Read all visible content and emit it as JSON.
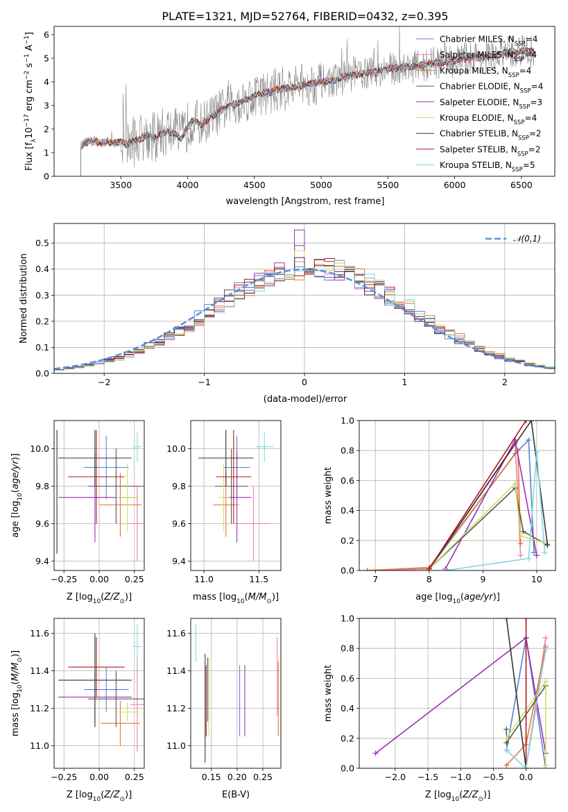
{
  "figure_title": "PLATE=1321, MJD=52764, FIBERID=0432, z=0.395",
  "colors": {
    "Chabrier MILES": "#5b7fd6",
    "Salpeter MILES": "#f080a8",
    "Kroupa MILES": "#e07830",
    "Chabrier ELODIE": "#555555",
    "Salpeter ELODIE": "#9b30b0",
    "Kroupa ELODIE": "#cfe060",
    "Chabrier STELIB": "#333333",
    "Salpeter STELIB": "#b01818",
    "Kroupa STELIB": "#80d8e0",
    "data": "#808080",
    "gauss": "#5b8fd9",
    "grid": "#b0b0b0"
  },
  "chart_data": [
    {
      "id": "spectrum",
      "type": "line",
      "title": "PLATE=1321, MJD=52764, FIBERID=0432, z=0.395",
      "xlabel": "wavelength [Angstrom, rest frame]",
      "ylabel": "Flux [f_λ 10^-17 erg cm^-2 s^-1 A^-1]",
      "xlim": [
        3000,
        6750
      ],
      "ylim": [
        0,
        6.35
      ],
      "xticks": [
        3500,
        4000,
        4500,
        5000,
        5500,
        6000,
        6500
      ],
      "yticks": [
        0,
        1,
        2,
        3,
        4,
        5,
        6
      ],
      "grid": false,
      "legend": "upper right",
      "legend_entries": [
        {
          "label": "Chabrier MILES, N_SSP=4",
          "main": "Chabrier MILES, N",
          "sub": "SSP",
          "tail": "=4"
        },
        {
          "label": "Salpeter MILES, N_SSP=4",
          "main": "Salpeter MILES, N",
          "sub": "SSP",
          "tail": "=4"
        },
        {
          "label": "Kroupa MILES, N_SSP=4",
          "main": "Kroupa MILES, N",
          "sub": "SSP",
          "tail": "=4"
        },
        {
          "label": "Chabrier ELODIE, N_SSP=4",
          "main": "Chabrier ELODIE, N",
          "sub": "SSP",
          "tail": "=4"
        },
        {
          "label": "Salpeter ELODIE, N_SSP=3",
          "main": "Salpeter ELODIE, N",
          "sub": "SSP",
          "tail": "=3"
        },
        {
          "label": "Kroupa ELODIE, N_SSP=4",
          "main": "Kroupa ELODIE, N",
          "sub": "SSP",
          "tail": "=4"
        },
        {
          "label": "Chabrier STELIB, N_SSP=2",
          "main": "Chabrier STELIB, N",
          "sub": "SSP",
          "tail": "=2"
        },
        {
          "label": "Salpeter STELIB, N_SSP=2",
          "main": "Salpeter STELIB, N",
          "sub": "SSP",
          "tail": "=2"
        },
        {
          "label": "Kroupa STELIB, N_SSP=5",
          "main": "Kroupa STELIB, N",
          "sub": "SSP",
          "tail": "=5"
        }
      ],
      "model_continuum": {
        "x": [
          3200,
          3210,
          3250,
          3300,
          3350,
          3400,
          3450,
          3500,
          3550,
          3600,
          3650,
          3700,
          3750,
          3800,
          3850,
          3900,
          3950,
          4000,
          4050,
          4100,
          4200,
          4300,
          4400,
          4500,
          4600,
          4700,
          4800,
          4900,
          5000,
          5100,
          5200,
          5300,
          5400,
          5500,
          5600,
          5700,
          5800,
          5900,
          6000,
          6100,
          6200,
          6300,
          6400,
          6500,
          6600
        ],
        "y": [
          1.3,
          1.35,
          1.45,
          1.5,
          1.4,
          1.5,
          1.4,
          1.45,
          1.35,
          1.5,
          1.6,
          1.75,
          1.6,
          1.8,
          1.9,
          1.85,
          1.55,
          2.1,
          2.4,
          2.2,
          2.6,
          2.95,
          3.15,
          3.4,
          3.55,
          3.7,
          3.8,
          3.9,
          4.0,
          4.05,
          4.25,
          4.35,
          4.4,
          4.55,
          4.6,
          4.65,
          4.75,
          4.8,
          4.9,
          5.0,
          5.05,
          5.1,
          5.25,
          5.3,
          5.25
        ]
      },
      "observed_data_range": [
        3200,
        6600
      ]
    },
    {
      "id": "residuals",
      "type": "histogram",
      "xlabel": "(data-model)/error",
      "ylabel": "Normed distribution",
      "xlim": [
        -2.5,
        2.5
      ],
      "ylim": [
        0,
        0.575
      ],
      "xticks": [
        -2,
        -1,
        0,
        1,
        2
      ],
      "yticks": [
        0.0,
        0.1,
        0.2,
        0.3,
        0.4,
        0.5
      ],
      "grid": true,
      "legend": "upper right",
      "legend_entries": [
        "𝒩(0,1)"
      ],
      "gaussian": {
        "mean": 0,
        "sigma": 1
      },
      "bin_width": 0.1,
      "base_mean": 0.08,
      "base_sigma": 0.98,
      "peak_values": {
        "Salpeter ELODIE": 0.55,
        "Chabrier ELODIE": 0.49,
        "Kroupa ELODIE": 0.47
      }
    },
    {
      "id": "age_vs_Z",
      "type": "errorbar",
      "xlabel": "Z [log10(Z/Z⊙)]",
      "ylabel": "age [log10(age/yr)]",
      "xlim": [
        -0.32,
        0.32
      ],
      "ylim": [
        9.35,
        10.15
      ],
      "xticks": [
        -0.25,
        0.0,
        0.25
      ],
      "yticks": [
        9.4,
        9.6,
        9.8,
        10.0
      ],
      "grid": true,
      "points": [
        {
          "model": "Chabrier MILES",
          "x": 0.05,
          "xerr": 0.16,
          "y": 9.9,
          "yerr": 0.17
        },
        {
          "model": "Salpeter MILES",
          "x": 0.27,
          "xerr": 0.06,
          "y": 9.6,
          "yerr": 0.2
        },
        {
          "model": "Kroupa MILES",
          "x": 0.15,
          "xerr": 0.15,
          "y": 9.7,
          "yerr": 0.17
        },
        {
          "model": "Chabrier ELODIE",
          "x": 0.12,
          "xerr": 0.2,
          "y": 9.8,
          "yerr": 0.2
        },
        {
          "model": "Salpeter ELODIE",
          "x": -0.03,
          "xerr": 0.26,
          "y": 9.74,
          "yerr": 0.24
        },
        {
          "model": "Kroupa ELODIE",
          "x": 0.2,
          "xerr": 0.08,
          "y": 9.74,
          "yerr": 0.18
        },
        {
          "model": "Chabrier STELIB",
          "x": -0.03,
          "xerr": 0.26,
          "y": 9.95,
          "yerr": 0.15
        },
        {
          "model": "Salpeter STELIB",
          "x": -0.02,
          "xerr": 0.2,
          "y": 9.85,
          "yerr": 0.25
        },
        {
          "model": "Kroupa STELIB",
          "x": 0.27,
          "xerr": 0.03,
          "y": 10.01,
          "yerr": 0.08
        }
      ],
      "extra_points": [
        {
          "model": "Chabrier STELIB",
          "x": -0.3,
          "xerr": 0.0,
          "y": 9.77,
          "yerr": 0.33
        }
      ]
    },
    {
      "id": "age_vs_mass",
      "type": "errorbar",
      "xlabel": "mass [log10(M/M⊙)]",
      "ylabel": "",
      "xlim": [
        10.88,
        11.7
      ],
      "ylim": [
        9.35,
        10.15
      ],
      "xticks": [
        11.0,
        11.5
      ],
      "yticks": [
        9.4,
        9.6,
        9.8,
        10.0
      ],
      "grid": true,
      "points": [
        {
          "model": "Chabrier MILES",
          "x": 11.3,
          "xerr": 0.12,
          "y": 9.9,
          "yerr": 0.17
        },
        {
          "model": "Salpeter MILES",
          "x": 11.45,
          "xerr": 0.15,
          "y": 9.6,
          "yerr": 0.2
        },
        {
          "model": "Kroupa MILES",
          "x": 11.2,
          "xerr": 0.12,
          "y": 9.7,
          "yerr": 0.17
        },
        {
          "model": "Chabrier ELODIE",
          "x": 11.25,
          "xerr": 0.15,
          "y": 9.8,
          "yerr": 0.2
        },
        {
          "model": "Salpeter ELODIE",
          "x": 11.3,
          "xerr": 0.13,
          "y": 9.74,
          "yerr": 0.24
        },
        {
          "model": "Kroupa ELODIE",
          "x": 11.18,
          "xerr": 0.05,
          "y": 9.74,
          "yerr": 0.18
        },
        {
          "model": "Chabrier STELIB",
          "x": 11.2,
          "xerr": 0.25,
          "y": 9.95,
          "yerr": 0.15
        },
        {
          "model": "Salpeter STELIB",
          "x": 11.27,
          "xerr": 0.16,
          "y": 9.85,
          "yerr": 0.25
        },
        {
          "model": "Kroupa STELIB",
          "x": 11.55,
          "xerr": 0.08,
          "y": 10.01,
          "yerr": 0.08
        }
      ]
    },
    {
      "id": "mass_weight_vs_age",
      "type": "line",
      "xlabel": "age [log10(age/yr)]",
      "ylabel": "mass weight",
      "xlim": [
        6.7,
        10.35
      ],
      "ylim": [
        0,
        1.0
      ],
      "xticks": [
        7,
        8,
        9,
        10
      ],
      "yticks": [
        0.0,
        0.2,
        0.4,
        0.6,
        0.8,
        1.0
      ],
      "grid": true,
      "series": [
        {
          "model": "Chabrier MILES",
          "x": [
            6.85,
            8.0,
            9.6,
            9.85,
            9.95
          ],
          "y": [
            0.0,
            0.01,
            0.78,
            0.87,
            0.12
          ]
        },
        {
          "model": "Salpeter MILES",
          "x": [
            6.85,
            8.0,
            9.6,
            9.7
          ],
          "y": [
            0.0,
            0.01,
            0.85,
            0.1
          ]
        },
        {
          "model": "Kroupa MILES",
          "x": [
            6.85,
            8.0,
            9.65,
            9.7
          ],
          "y": [
            0.0,
            0.02,
            0.8,
            0.18
          ]
        },
        {
          "model": "Chabrier ELODIE",
          "x": [
            8.0,
            9.6,
            9.75,
            10.2
          ],
          "y": [
            0.01,
            0.55,
            0.26,
            0.17
          ]
        },
        {
          "model": "Salpeter ELODIE",
          "x": [
            8.3,
            9.6,
            10.0
          ],
          "y": [
            0.01,
            0.87,
            0.1
          ]
        },
        {
          "model": "Kroupa ELODIE",
          "x": [
            8.0,
            9.6,
            9.7,
            10.2
          ],
          "y": [
            0.01,
            0.58,
            0.23,
            0.18
          ]
        },
        {
          "model": "Chabrier STELIB",
          "x": [
            8.0,
            9.9,
            10.2
          ],
          "y": [
            0.01,
            1.0,
            0.17
          ]
        },
        {
          "model": "Salpeter STELIB",
          "x": [
            8.0,
            9.8
          ],
          "y": [
            0.01,
            1.0
          ]
        },
        {
          "model": "Kroupa STELIB",
          "x": [
            8.3,
            9.85,
            10.0,
            10.15
          ],
          "y": [
            0.0,
            0.08,
            0.79,
            0.12
          ]
        }
      ]
    },
    {
      "id": "mass_vs_Z",
      "type": "errorbar",
      "xlabel": "Z [log10(Z/Z⊙)]",
      "ylabel": "mass [log10(M/M⊙)]",
      "xlim": [
        -0.32,
        0.32
      ],
      "ylim": [
        10.88,
        11.68
      ],
      "xticks": [
        -0.25,
        0.0,
        0.25
      ],
      "yticks": [
        11.0,
        11.2,
        11.4,
        11.6
      ],
      "grid": true,
      "points": [
        {
          "model": "Chabrier MILES",
          "x": 0.05,
          "xerr": 0.16,
          "y": 11.3,
          "yerr": 0.12
        },
        {
          "model": "Salpeter MILES",
          "x": 0.27,
          "xerr": 0.05,
          "y": 11.22,
          "yerr": 0.25
        },
        {
          "model": "Kroupa MILES",
          "x": 0.15,
          "xerr": 0.14,
          "y": 11.12,
          "yerr": 0.12
        },
        {
          "model": "Chabrier ELODIE",
          "x": 0.12,
          "xerr": 0.2,
          "y": 11.25,
          "yerr": 0.15
        },
        {
          "model": "Salpeter ELODIE",
          "x": -0.03,
          "xerr": 0.26,
          "y": 11.26,
          "yerr": 0.13
        },
        {
          "model": "Kroupa ELODIE",
          "x": 0.2,
          "xerr": 0.09,
          "y": 11.18,
          "yerr": 0.05
        },
        {
          "model": "Chabrier STELIB",
          "x": -0.03,
          "xerr": 0.26,
          "y": 11.35,
          "yerr": 0.25
        },
        {
          "model": "Salpeter STELIB",
          "x": -0.02,
          "xerr": 0.2,
          "y": 11.42,
          "yerr": 0.16
        },
        {
          "model": "Kroupa STELIB",
          "x": 0.27,
          "xerr": 0.03,
          "y": 11.53,
          "yerr": 0.12
        }
      ]
    },
    {
      "id": "mass_vs_EBV",
      "type": "errorbar",
      "xlabel": "E(B-V)",
      "ylabel": "",
      "xlim": [
        0.11,
        0.285
      ],
      "ylim": [
        10.88,
        11.68
      ],
      "xticks": [
        0.15,
        0.2,
        0.25
      ],
      "yticks": [
        11.0,
        11.2,
        11.4,
        11.6
      ],
      "grid": true,
      "points": [
        {
          "model": "Chabrier MILES",
          "x": 0.205,
          "xerr": 0,
          "y": 11.24,
          "yerr": 0.19
        },
        {
          "model": "Salpeter MILES",
          "x": 0.278,
          "xerr": 0,
          "y": 11.37,
          "yerr": 0.21
        },
        {
          "model": "Kroupa MILES",
          "x": 0.28,
          "xerr": 0,
          "y": 11.25,
          "yerr": 0.2
        },
        {
          "model": "Chabrier ELODIE",
          "x": 0.143,
          "xerr": 0,
          "y": 11.3,
          "yerr": 0.17
        },
        {
          "model": "Salpeter ELODIE",
          "x": 0.215,
          "xerr": 0,
          "y": 11.24,
          "yerr": 0.19
        },
        {
          "model": "Kroupa ELODIE",
          "x": 0.145,
          "xerr": 0,
          "y": 11.26,
          "yerr": 0.21
        },
        {
          "model": "Chabrier STELIB",
          "x": 0.138,
          "xerr": 0,
          "y": 11.2,
          "yerr": 0.29
        },
        {
          "model": "Salpeter STELIB",
          "x": 0.14,
          "xerr": 0,
          "y": 11.24,
          "yerr": 0.19
        },
        {
          "model": "Kroupa STELIB",
          "x": 0.12,
          "xerr": 0,
          "y": 11.55,
          "yerr": 0.1
        }
      ]
    },
    {
      "id": "mass_weight_vs_Z",
      "type": "line",
      "xlabel": "Z [log10(Z/Z⊙)]",
      "ylabel": "mass weight",
      "xlim": [
        -2.55,
        0.45
      ],
      "ylim": [
        0,
        1.0
      ],
      "xticks": [
        -2.0,
        -1.5,
        -1.0,
        -0.5,
        0.0
      ],
      "yticks": [
        0.0,
        0.2,
        0.4,
        0.6,
        0.8,
        1.0
      ],
      "grid": true,
      "series": [
        {
          "model": "Chabrier MILES",
          "x": [
            -0.3,
            0.0,
            0.3
          ],
          "y": [
            0.12,
            0.87,
            0.0
          ]
        },
        {
          "model": "Salpeter MILES",
          "x": [
            0.0,
            0.3
          ],
          "y": [
            0.0,
            0.87
          ]
        },
        {
          "model": "Kroupa MILES",
          "x": [
            -0.3,
            0.0,
            0.3
          ],
          "y": [
            0.02,
            0.16,
            0.81
          ]
        },
        {
          "model": "Chabrier ELODIE",
          "x": [
            -0.3,
            -0.3,
            0.3
          ],
          "y": [
            0.26,
            0.17,
            0.55
          ]
        },
        {
          "model": "Salpeter ELODIE",
          "x": [
            -2.3,
            0.0,
            0.3
          ],
          "y": [
            0.1,
            0.87,
            0.1
          ]
        },
        {
          "model": "Kroupa ELODIE",
          "x": [
            -0.3,
            0.3,
            0.3
          ],
          "y": [
            0.2,
            0.58,
            0.02
          ]
        },
        {
          "model": "Chabrier STELIB",
          "x": [
            -0.3,
            0.0
          ],
          "y": [
            1.0,
            0.0
          ]
        },
        {
          "model": "Salpeter STELIB",
          "x": [
            0.0,
            0.0
          ],
          "y": [
            1.0,
            0.0
          ]
        },
        {
          "model": "Kroupa STELIB",
          "x": [
            -0.3,
            0.0,
            0.3
          ],
          "y": [
            0.12,
            0.0,
            0.79
          ]
        }
      ]
    }
  ]
}
